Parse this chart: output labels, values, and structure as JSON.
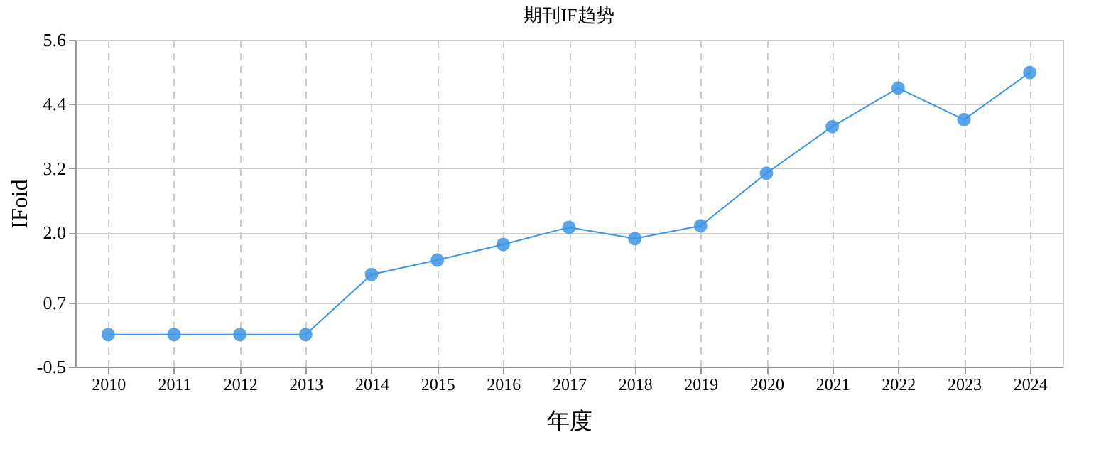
{
  "chart_data": {
    "type": "line",
    "title": "期刊IF趋势",
    "xlabel": "年度",
    "ylabel": "IFoid",
    "categories": [
      "2010",
      "2011",
      "2012",
      "2013",
      "2014",
      "2015",
      "2016",
      "2017",
      "2018",
      "2019",
      "2020",
      "2021",
      "2022",
      "2023",
      "2024"
    ],
    "series": [
      {
        "color": "#3d95e6",
        "values": [
          0.1,
          0.1,
          0.1,
          0.1,
          1.22,
          1.49,
          1.78,
          2.1,
          1.89,
          2.13,
          3.11,
          3.98,
          4.7,
          4.11,
          4.99
        ]
      }
    ],
    "ylim": [
      -0.5,
      5.6
    ],
    "yticks": [
      -0.5,
      0.7,
      {
        "value": 2,
        "label": "2.0"
      },
      3.2,
      4.4,
      5.6
    ],
    "grid": true,
    "marker": "circle",
    "line_style": "solid"
  }
}
